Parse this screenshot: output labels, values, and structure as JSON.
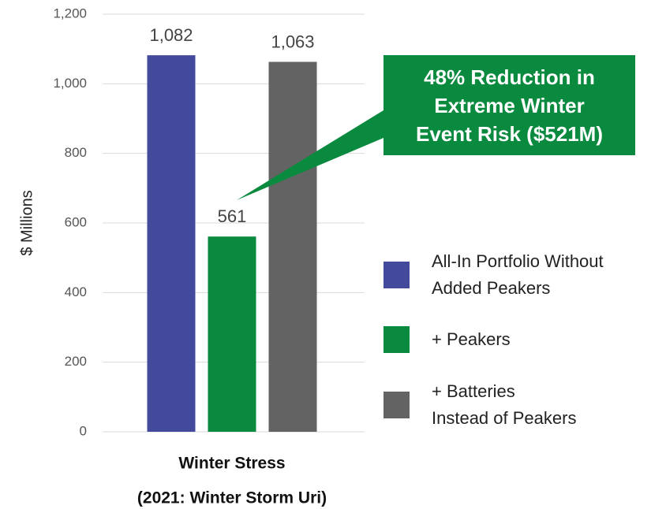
{
  "chart_data": {
    "type": "bar",
    "categories": [
      "Winter Stress"
    ],
    "category_note": "(2021: Winter Storm Uri)",
    "ylabel": "$ Millions",
    "ylim": [
      0,
      1200
    ],
    "yticks": [
      0,
      200,
      400,
      600,
      800,
      {
        "value": 1000,
        "label": "1,000"
      },
      {
        "value": 1200,
        "label": "1,200"
      }
    ],
    "grid": true,
    "legend": "right",
    "annotation": "48% Reduction in Extreme Winter Event Risk ($521M)",
    "annotation_color": "#0a8a3e",
    "series": [
      {
        "name": "All-In Portfolio Without\nAdded Peakers",
        "color": "#434a9c",
        "values": [
          1082
        ],
        "value_labels": [
          "1,082"
        ]
      },
      {
        "name": "+ Peakers",
        "color": "#0a8a3e",
        "values": [
          561
        ]
      },
      {
        "name": "+ Batteries\nInstead of Peakers",
        "color": "#636363",
        "values": [
          1063
        ],
        "value_labels": [
          "1,063"
        ]
      }
    ]
  }
}
